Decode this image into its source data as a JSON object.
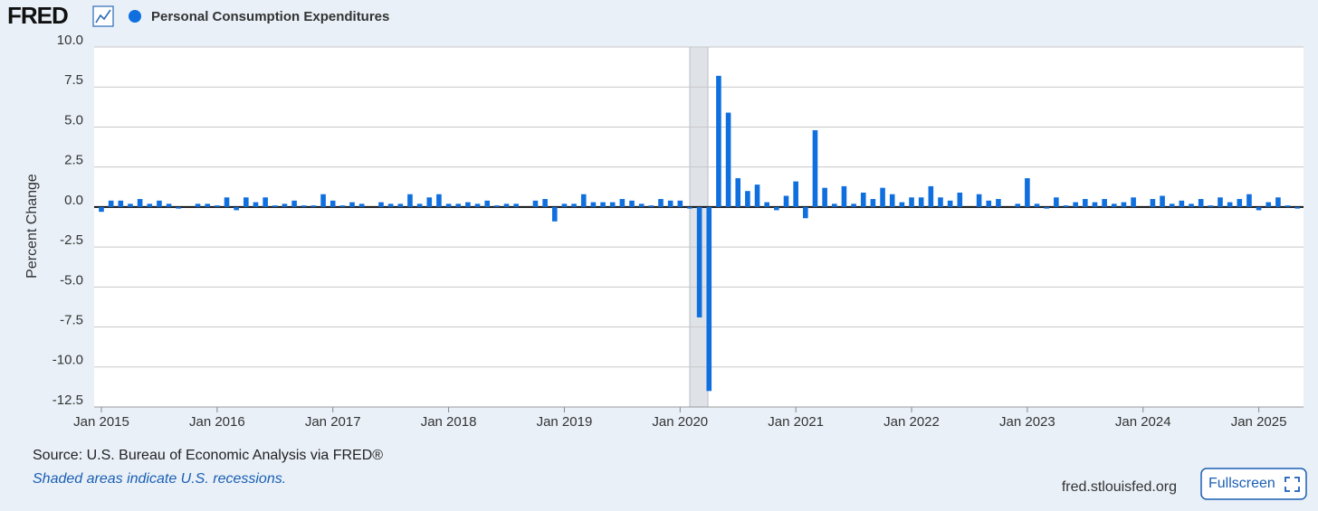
{
  "header": {
    "logo": "FRED",
    "source": "Source: U.S. Bureau of Economic Analysis via FRED®",
    "note": "Shaded areas indicate U.S. recessions.",
    "site": "fred.stlouisfed.org",
    "button": "Fullscreen"
  },
  "chart_data": {
    "type": "bar",
    "ylabel": "Percent Change",
    "categories": [
      "Jan 2015",
      null,
      null,
      null,
      null,
      null,
      null,
      null,
      null,
      null,
      null,
      null,
      "Jan 2016",
      null,
      null,
      null,
      null,
      null,
      null,
      null,
      null,
      null,
      null,
      null,
      "Jan 2017",
      null,
      null,
      null,
      null,
      null,
      null,
      null,
      null,
      null,
      null,
      null,
      "Jan 2018",
      null,
      null,
      null,
      null,
      null,
      null,
      null,
      null,
      null,
      null,
      null,
      "Jan 2019",
      null,
      null,
      null,
      null,
      null,
      null,
      null,
      null,
      null,
      null,
      null,
      "Jan 2020",
      null,
      null,
      null,
      null,
      null,
      null,
      null,
      null,
      null,
      null,
      null,
      "Jan 2021",
      null,
      null,
      null,
      null,
      null,
      null,
      null,
      null,
      null,
      null,
      null,
      "Jan 2022",
      null,
      null,
      null,
      null,
      null,
      null,
      null,
      null,
      null,
      null,
      null,
      "Jan 2023",
      null,
      null,
      null,
      null,
      null,
      null,
      null,
      null,
      null,
      null,
      null,
      "Jan 2024",
      null,
      null,
      null,
      null,
      null,
      null,
      null,
      null,
      null,
      null,
      null,
      "Jan 2025",
      null,
      null,
      null,
      null
    ],
    "series": [
      {
        "name": "Personal Consumption Expenditures",
        "color": "#0f6fde",
        "values": [
          -0.3,
          0.4,
          0.4,
          0.2,
          0.5,
          0.2,
          0.4,
          0.2,
          -0.1,
          0.0,
          0.2,
          0.2,
          0.1,
          0.6,
          -0.2,
          0.6,
          0.3,
          0.6,
          0.1,
          0.2,
          0.4,
          0.1,
          0.1,
          0.8,
          0.4,
          0.1,
          0.3,
          0.2,
          0.0,
          0.3,
          0.2,
          0.2,
          0.8,
          0.2,
          0.6,
          0.8,
          0.2,
          0.2,
          0.3,
          0.2,
          0.4,
          0.1,
          0.2,
          0.2,
          0.0,
          0.4,
          0.5,
          -0.9,
          0.2,
          0.2,
          0.8,
          0.3,
          0.3,
          0.3,
          0.5,
          0.4,
          0.2,
          0.1,
          0.5,
          0.4,
          0.4,
          -0.1,
          -6.9,
          -11.5,
          8.2,
          5.9,
          1.8,
          1.0,
          1.4,
          0.3,
          -0.2,
          0.7,
          1.6,
          -0.7,
          4.8,
          1.2,
          0.2,
          1.3,
          0.2,
          0.9,
          0.5,
          1.2,
          0.8,
          0.3,
          0.6,
          0.6,
          1.3,
          0.6,
          0.4,
          0.9,
          0.0,
          0.8,
          0.4,
          0.5,
          0.0,
          0.2,
          1.8,
          0.2,
          -0.1,
          0.6,
          0.1,
          0.3,
          0.5,
          0.3,
          0.5,
          0.2,
          0.3,
          0.6,
          0.0,
          0.5,
          0.7,
          0.2,
          0.4,
          0.2,
          0.5,
          0.1,
          0.6,
          0.3,
          0.5,
          0.8,
          -0.2,
          0.3,
          0.6,
          0.1,
          -0.1
        ]
      }
    ],
    "ylim": [
      -12.5,
      10
    ],
    "yticks": [
      {
        "value": -12.5,
        "label": "-12.5"
      },
      {
        "value": -10,
        "label": "-10.0"
      },
      {
        "value": -7.5,
        "label": "-7.5"
      },
      {
        "value": -5,
        "label": "-5.0"
      },
      {
        "value": -2.5,
        "label": "-2.5"
      },
      {
        "value": 0,
        "label": "0.0"
      },
      {
        "value": 2.5,
        "label": "2.5"
      },
      {
        "value": 5,
        "label": "5.0"
      },
      {
        "value": 7.5,
        "label": "7.5"
      },
      {
        "value": 10,
        "label": "10.0"
      }
    ],
    "grid": true
  }
}
